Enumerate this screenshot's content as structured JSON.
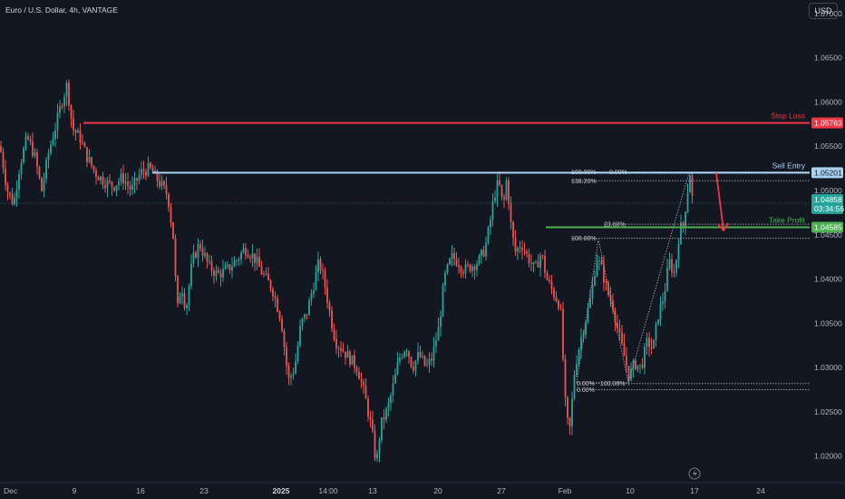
{
  "header": {
    "title": "Euro / U.S. Dollar, 4h, VANTAGE",
    "currency_button": "USD"
  },
  "colors": {
    "background": "#131722",
    "up": "#26a69a",
    "down": "#ef5350",
    "stop_loss": "#f23645",
    "sell_entry": "#a9d1f2",
    "take_profit": "#4caf50",
    "arrow": "#f23645"
  },
  "chart_data": {
    "type": "candlestick",
    "ylim": [
      1.017,
      1.0707
    ],
    "yticks": [
      "1.07000",
      "1.06500",
      "1.06000",
      "1.05500",
      "1.05000",
      "1.04500",
      "1.04000",
      "1.03500",
      "1.03000",
      "1.02500",
      "1.02000"
    ],
    "xticks": [
      {
        "label": "Dec",
        "bold": false
      },
      {
        "label": "9",
        "bold": false
      },
      {
        "label": "16",
        "bold": false
      },
      {
        "label": "23",
        "bold": false
      },
      {
        "label": "2025",
        "bold": true
      },
      {
        "label": "14:00",
        "bold": false
      },
      {
        "label": "13",
        "bold": false
      },
      {
        "label": "20",
        "bold": false
      },
      {
        "label": "27",
        "bold": false
      },
      {
        "label": "Feb",
        "bold": false
      },
      {
        "label": "10",
        "bold": false
      },
      {
        "label": "17",
        "bold": false
      },
      {
        "label": "24",
        "bold": false
      }
    ],
    "price_path": [
      [
        0,
        1.055
      ],
      [
        8,
        1.05
      ],
      [
        15,
        1.0485
      ],
      [
        22,
        1.053
      ],
      [
        30,
        1.056
      ],
      [
        38,
        1.054
      ],
      [
        46,
        1.05
      ],
      [
        54,
        1.0545
      ],
      [
        62,
        1.0575
      ],
      [
        68,
        1.06
      ],
      [
        74,
        1.062
      ],
      [
        80,
        1.057
      ],
      [
        88,
        1.056
      ],
      [
        95,
        1.054
      ],
      [
        105,
        1.052
      ],
      [
        115,
        1.051
      ],
      [
        125,
        1.0505
      ],
      [
        135,
        1.0515
      ],
      [
        145,
        1.05
      ],
      [
        155,
        1.052
      ],
      [
        165,
        1.0525
      ],
      [
        175,
        1.051
      ],
      [
        185,
        1.0495
      ],
      [
        192,
        1.044
      ],
      [
        195,
        1.036
      ],
      [
        200,
        1.0395
      ],
      [
        205,
        1.0365
      ],
      [
        212,
        1.042
      ],
      [
        220,
        1.044
      ],
      [
        230,
        1.0415
      ],
      [
        240,
        1.0405
      ],
      [
        250,
        1.041
      ],
      [
        260,
        1.042
      ],
      [
        270,
        1.0435
      ],
      [
        280,
        1.0425
      ],
      [
        290,
        1.0405
      ],
      [
        300,
        1.039
      ],
      [
        310,
        1.0355
      ],
      [
        318,
        1.0285
      ],
      [
        325,
        1.03
      ],
      [
        332,
        1.035
      ],
      [
        338,
        1.036
      ],
      [
        345,
        1.039
      ],
      [
        352,
        1.042
      ],
      [
        358,
        1.0395
      ],
      [
        364,
        1.036
      ],
      [
        370,
        1.033
      ],
      [
        378,
        1.032
      ],
      [
        386,
        1.031
      ],
      [
        394,
        1.03
      ],
      [
        402,
        1.027
      ],
      [
        410,
        1.023
      ],
      [
        415,
        1.019
      ],
      [
        420,
        1.0235
      ],
      [
        428,
        1.0255
      ],
      [
        435,
        1.0285
      ],
      [
        440,
        1.031
      ],
      [
        448,
        1.0325
      ],
      [
        455,
        1.03
      ],
      [
        462,
        1.0315
      ],
      [
        470,
        1.03
      ],
      [
        476,
        1.031
      ],
      [
        484,
        1.0345
      ],
      [
        490,
        1.04
      ],
      [
        498,
        1.0425
      ],
      [
        505,
        1.042
      ],
      [
        512,
        1.041
      ],
      [
        520,
        1.0415
      ],
      [
        528,
        1.042
      ],
      [
        535,
        1.0435
      ],
      [
        540,
        1.046
      ],
      [
        545,
        1.0495
      ],
      [
        550,
        1.051
      ],
      [
        555,
        1.048
      ],
      [
        559,
        1.0515
      ],
      [
        563,
        1.0465
      ],
      [
        568,
        1.043
      ],
      [
        575,
        1.044
      ],
      [
        582,
        1.0425
      ],
      [
        590,
        1.041
      ],
      [
        597,
        1.043
      ],
      [
        603,
        1.04
      ],
      [
        610,
        1.0385
      ],
      [
        618,
        1.037
      ],
      [
        624,
        1.025
      ],
      [
        628,
        1.0225
      ],
      [
        634,
        1.03
      ],
      [
        640,
        1.033
      ],
      [
        646,
        1.0355
      ],
      [
        652,
        1.038
      ],
      [
        658,
        1.0425
      ],
      [
        664,
        1.041
      ],
      [
        670,
        1.0385
      ],
      [
        676,
        1.037
      ],
      [
        682,
        1.034
      ],
      [
        688,
        1.0315
      ],
      [
        694,
        1.029
      ],
      [
        700,
        1.0305
      ],
      [
        707,
        1.03
      ],
      [
        714,
        1.033
      ],
      [
        720,
        1.032
      ],
      [
        726,
        1.036
      ],
      [
        732,
        1.038
      ],
      [
        738,
        1.042
      ],
      [
        744,
        1.0405
      ],
      [
        750,
        1.046
      ],
      [
        753,
        1.0455
      ],
      [
        757,
        1.049
      ],
      [
        761,
        1.052
      ],
      [
        764,
        1.0486
      ]
    ],
    "levels": [
      {
        "key": "stop_loss",
        "name": "Stop Loss",
        "price": 1.05763,
        "price_label": "1.05763",
        "x_start": 92
      },
      {
        "key": "sell_entry",
        "name": "Sell Entry",
        "price": 1.05201,
        "price_label": "1.05201",
        "x_start": 168
      },
      {
        "key": "take_profit",
        "name": "Take Profit",
        "price": 1.04585,
        "price_label": "1.04585",
        "x_start": 602
      }
    ],
    "current_price": {
      "price": 1.04858,
      "label": "1.04858",
      "countdown": "03:34:56"
    },
    "fib_labels": [
      {
        "text": "100.00%",
        "price": 1.0521,
        "x": 630
      },
      {
        "text": "0.00%",
        "price": 1.0521,
        "x": 672
      },
      {
        "text": "138.20%",
        "price": 1.0511,
        "x": 630
      },
      {
        "text": "23.60%",
        "price": 1.0462,
        "x": 666
      },
      {
        "text": "100.00%",
        "price": 1.0446,
        "x": 630
      },
      {
        "text": "0.00%",
        "price": 1.0282,
        "x": 636
      },
      {
        "text": "100.00%",
        "price": 1.0282,
        "x": 662
      },
      {
        "text": "0.00%",
        "price": 1.0275,
        "x": 636
      }
    ],
    "fib_lines": [
      {
        "price": 1.0521,
        "x1": 630,
        "x2": 893
      },
      {
        "price": 1.0511,
        "x1": 630,
        "x2": 893
      },
      {
        "price": 1.0462,
        "x1": 666,
        "x2": 893
      },
      {
        "price": 1.0446,
        "x1": 630,
        "x2": 893
      },
      {
        "price": 1.0282,
        "x1": 636,
        "x2": 893
      },
      {
        "price": 1.0275,
        "x1": 636,
        "x2": 893
      }
    ],
    "harmonic_points": [
      [
        636,
        1.0283
      ],
      [
        660,
        1.0445
      ],
      [
        693,
        1.0283
      ],
      [
        760,
        1.052
      ]
    ],
    "arrow": {
      "from": [
        790,
        1.052
      ],
      "to": [
        798,
        1.0455
      ]
    },
    "legend": "none",
    "grid": false
  }
}
